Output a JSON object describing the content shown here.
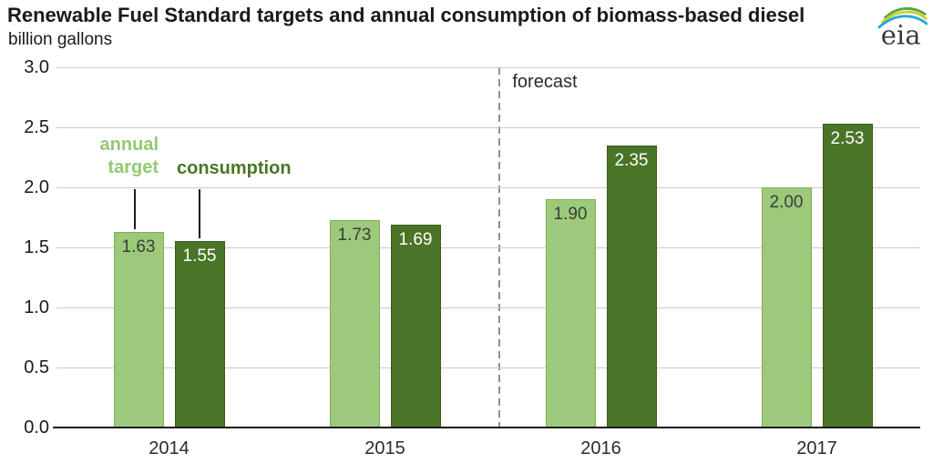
{
  "header": {
    "title": "Renewable Fuel Standard targets and annual consumption of biomass-based diesel",
    "subtitle": "billion gallons"
  },
  "logo": {
    "text": "eia",
    "arc_colors": {
      "green": "#5ba63d",
      "yellow": "#c8d22f",
      "blue": "#28a7dc"
    }
  },
  "chart_data": {
    "type": "bar",
    "title": "Renewable Fuel Standard targets and annual consumption of biomass-based diesel",
    "ylabel": "billion gallons",
    "xlabel": "",
    "categories": [
      "2014",
      "2015",
      "2016",
      "2017"
    ],
    "series": [
      {
        "name": "annual target",
        "values": [
          1.63,
          1.73,
          1.9,
          2.0
        ],
        "color": "#9cca7a",
        "border_color": "#7fae58",
        "label_color": "#3c3c3c"
      },
      {
        "name": "consumption",
        "values": [
          1.55,
          1.69,
          2.35,
          2.53
        ],
        "color": "#4a7426",
        "border_color": "#3a5c1e",
        "label_color": "#ffffff"
      }
    ],
    "ylim": [
      0,
      3
    ],
    "ytick_step": 0.5,
    "yticks": [
      "3.0",
      "2.5",
      "2.0",
      "1.5",
      "1.0",
      "0.5",
      "0.0"
    ],
    "value_label_decimals": 2,
    "grid": "horizontal",
    "legend": {
      "annual_target": "annual target",
      "consumption": "consumption"
    },
    "annotations": {
      "forecast": "forecast"
    },
    "forecast_divider_after_category": "2015",
    "colors": {
      "gridline": "#c9c9c9",
      "baseline": "#1a1a1a",
      "forecast_dash": "#8f8f8f",
      "legend_target_text": "#94c973",
      "legend_consumption_text": "#4a7527"
    }
  }
}
